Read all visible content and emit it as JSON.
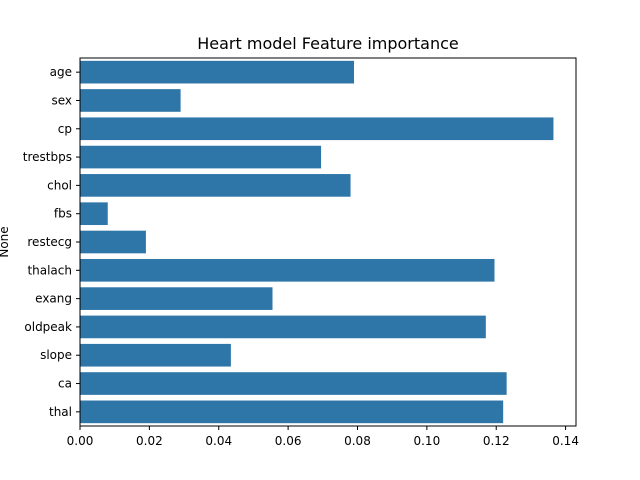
{
  "chart_data": {
    "type": "bar",
    "orientation": "horizontal",
    "title": "Heart model Feature importance",
    "xlabel": "",
    "ylabel": "None",
    "categories": [
      "age",
      "sex",
      "cp",
      "trestbps",
      "chol",
      "fbs",
      "restecg",
      "thalach",
      "exang",
      "oldpeak",
      "slope",
      "ca",
      "thal"
    ],
    "values": [
      0.079,
      0.029,
      0.1365,
      0.0695,
      0.078,
      0.008,
      0.019,
      0.1195,
      0.0555,
      0.117,
      0.0435,
      0.123,
      0.122
    ],
    "xlim": [
      0,
      0.143
    ],
    "xticks": [
      0.0,
      0.02,
      0.04,
      0.06,
      0.08,
      0.1,
      0.12,
      0.14
    ],
    "xtick_labels": [
      "0.00",
      "0.02",
      "0.04",
      "0.06",
      "0.08",
      "0.10",
      "0.12",
      "0.14"
    ],
    "bar_color": "#2e75a8",
    "grid": false,
    "legend": "none"
  }
}
